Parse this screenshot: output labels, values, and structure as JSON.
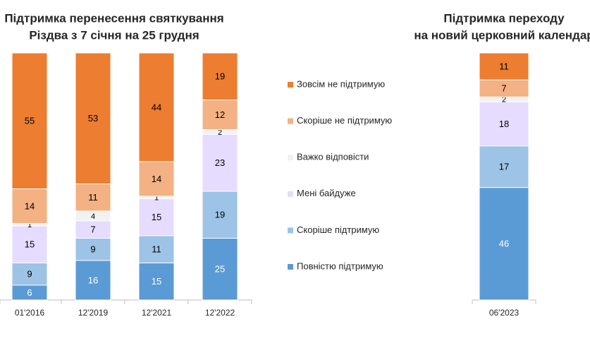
{
  "chart_data": [
    {
      "type": "stacked-bar",
      "title": [
        "Підтримка перенесення святкування",
        "Різдва з 7 січня на 25 грудня"
      ],
      "categories": [
        "01'2016",
        "12'2019",
        "12'2021",
        "12'2022"
      ],
      "series": [
        {
          "name": "Повністю підтримую",
          "color": "#5b9bd5",
          "values": [
            6,
            16,
            15,
            25
          ]
        },
        {
          "name": "Скоріше  підтримую",
          "color": "#9dc3e6",
          "values": [
            9,
            9,
            11,
            19
          ]
        },
        {
          "name": "Мені байдуже",
          "color": "#e6dcff",
          "values": [
            15,
            7,
            15,
            23
          ]
        },
        {
          "name": "Важко відповісти",
          "color": "#f2f2f2",
          "values": [
            1,
            4,
            1,
            2
          ]
        },
        {
          "name": "Скоріше  не підтримую",
          "color": "#f4b183",
          "values": [
            14,
            11,
            14,
            12
          ]
        },
        {
          "name": "Зовсім не підтримую",
          "color": "#ed7d31",
          "values": [
            55,
            53,
            44,
            19
          ]
        }
      ]
    },
    {
      "type": "stacked-bar",
      "title": [
        "Підтримка переходу",
        "на новий церковний календар"
      ],
      "categories": [
        "06'2023"
      ],
      "series": [
        {
          "color": "#5b9bd5",
          "values": [
            46
          ]
        },
        {
          "color": "#9dc3e6",
          "values": [
            17
          ]
        },
        {
          "color": "#e6dcff",
          "values": [
            18
          ]
        },
        {
          "color": "#f2f2f2",
          "values": [
            2
          ]
        },
        {
          "color": "#f4b183",
          "values": [
            7
          ]
        },
        {
          "color": "#ed7d31",
          "values": [
            11
          ]
        }
      ]
    }
  ]
}
